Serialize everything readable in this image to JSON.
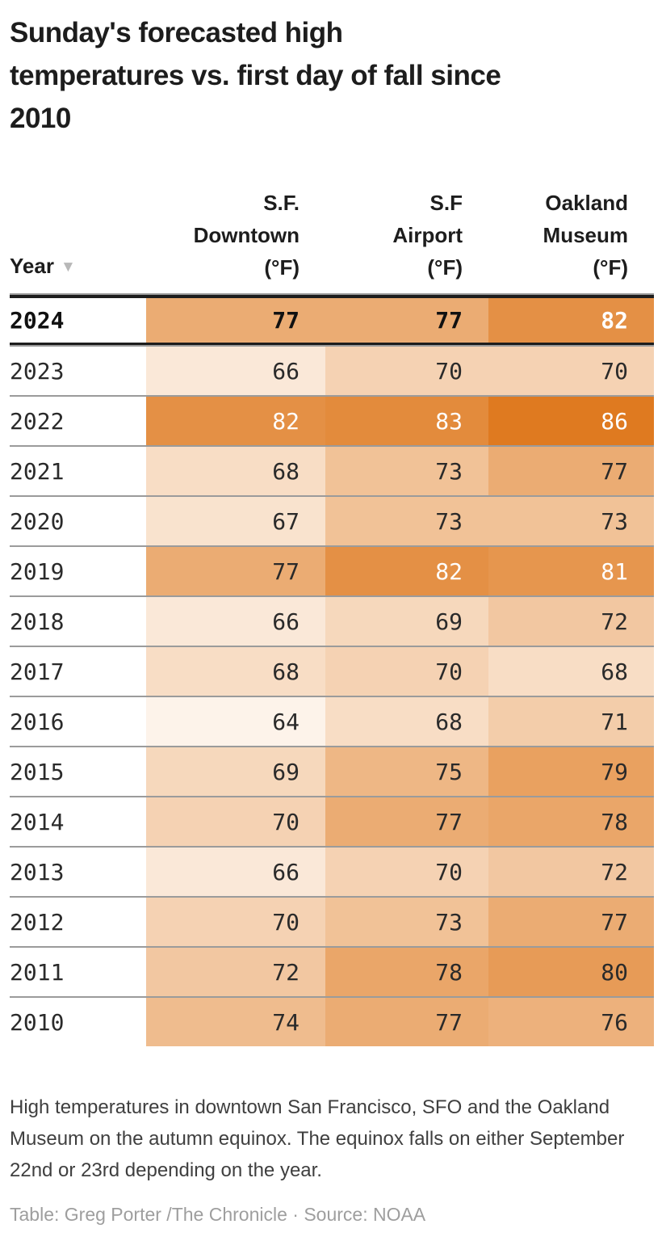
{
  "title": "Sunday's forecasted high\ntemperatures vs. first day of fall since\n2010",
  "table": {
    "highlight_year": "2024",
    "columns": [
      {
        "id": "year",
        "label": "Year",
        "sort_icon": "▼",
        "align": "left"
      },
      {
        "id": "sf_downtown",
        "label": "S.F.\nDowntown\n(°F)",
        "align": "right"
      },
      {
        "id": "sf_airport",
        "label": "S.F\nAirport\n(°F)",
        "align": "right"
      },
      {
        "id": "oakland_museum",
        "label": "Oakland\nMuseum\n(°F)",
        "align": "right"
      }
    ]
  },
  "heat_scale": {
    "min_value": 64,
    "max_value": 86,
    "min_color": "#fdf3ea",
    "max_color": "#df7a20",
    "white_text_min": 81,
    "white_text_color": "#ffffff"
  },
  "chart_data": {
    "type": "table",
    "title": "Sunday's forecasted high temperatures vs. first day of fall since 2010",
    "categories": [
      "2024",
      "2023",
      "2022",
      "2021",
      "2020",
      "2019",
      "2018",
      "2017",
      "2016",
      "2015",
      "2014",
      "2013",
      "2012",
      "2011",
      "2010"
    ],
    "series": [
      {
        "name": "S.F. Downtown (°F)",
        "values": [
          77,
          66,
          82,
          68,
          67,
          77,
          66,
          68,
          64,
          69,
          70,
          66,
          70,
          72,
          74
        ]
      },
      {
        "name": "S.F Airport (°F)",
        "values": [
          77,
          70,
          83,
          73,
          73,
          82,
          69,
          70,
          68,
          75,
          77,
          70,
          73,
          78,
          77
        ]
      },
      {
        "name": "Oakland Museum (°F)",
        "values": [
          82,
          70,
          86,
          77,
          73,
          81,
          72,
          68,
          71,
          79,
          78,
          72,
          77,
          80,
          76
        ]
      }
    ],
    "value_range": [
      64,
      86
    ],
    "colormap": "oranges",
    "sorted_by": "Year",
    "sort_direction": "descending"
  },
  "notes": "High temperatures in downtown San Francisco, SFO and the Oakland Museum on the autumn equinox. The equinox falls on either September 22nd or 23rd depending on the year.",
  "credit": "Table: Greg Porter /The Chronicle · Source: NOAA"
}
